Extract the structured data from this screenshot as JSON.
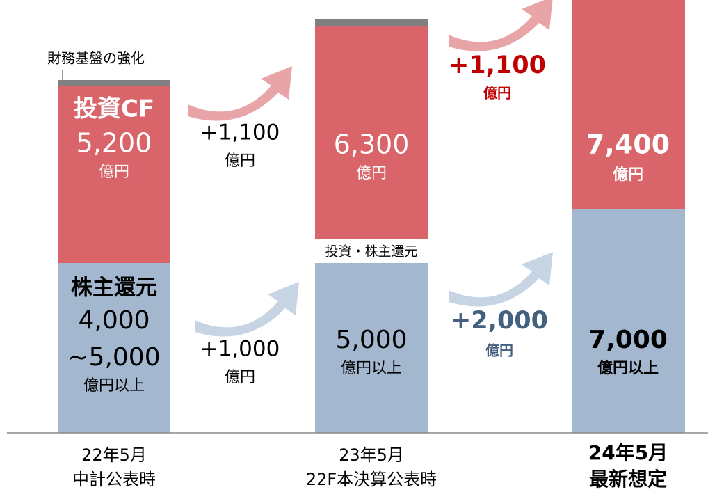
{
  "columns": [
    {
      "note": "財務基盤の強化",
      "investment": {
        "label": "投資CF",
        "amount": "5,200",
        "unit": "億円"
      },
      "returns": {
        "label": "株主還元",
        "amount": [
          "4,000",
          "~5,000"
        ],
        "unit": "億円以上"
      },
      "period": [
        "22年5月",
        "中計公表時"
      ]
    },
    {
      "note": "投資・株主還元",
      "investment": {
        "amount": "6,300",
        "unit": "億円"
      },
      "returns": {
        "amount": "5,000",
        "unit": "億円以上"
      },
      "period": [
        "23年5月",
        "22F本決算公表時"
      ]
    },
    {
      "investment": {
        "amount": "7,400",
        "unit": "億円"
      },
      "returns": {
        "amount": "7,000",
        "unit": "億円以上"
      },
      "period": [
        "24年5月",
        "最新想定"
      ]
    }
  ],
  "arrows": [
    {
      "amount": "+1,100",
      "unit": "億円"
    },
    {
      "amount": "+1,000",
      "unit": "億円"
    },
    {
      "amount": "+1,100",
      "unit": "億円"
    },
    {
      "amount": "+2,000",
      "unit": "億円"
    }
  ]
}
